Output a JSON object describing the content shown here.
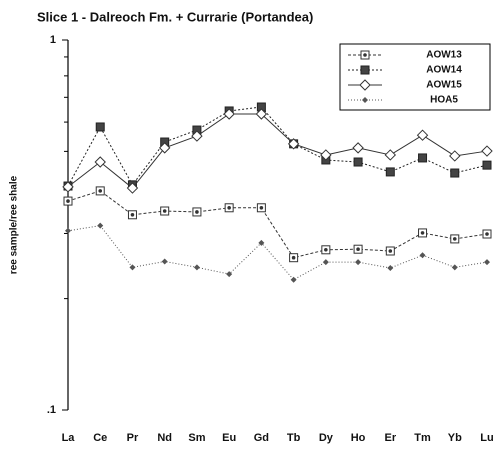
{
  "chart_data": {
    "type": "line",
    "title": "Slice 1 - Dalreoch Fm. + Currarie (Portandea)",
    "y_label": "ree sample/ree shale",
    "categories": [
      "La",
      "Ce",
      "Pr",
      "Nd",
      "Sm",
      "Eu",
      "Gd",
      "Tb",
      "Dy",
      "Ho",
      "Er",
      "Tm",
      "Yb",
      "Lu"
    ],
    "y_scale": "log",
    "ylim": [
      0.1,
      1
    ],
    "yticks": [
      {
        "value": 0.1,
        "label": ".1"
      },
      1
    ],
    "minor_yticks": [
      0.2,
      0.3,
      0.4,
      0.5,
      0.6,
      0.7,
      0.8,
      0.9
    ],
    "legend": "upper right",
    "series": [
      {
        "name": "AOW13",
        "color": "#333333",
        "marker": "square-dot",
        "dash": "3,2",
        "values": [
          0.367,
          0.391,
          0.337,
          0.345,
          0.343,
          0.352,
          0.352,
          0.258,
          0.271,
          0.272,
          0.269,
          0.301,
          0.29,
          0.299
        ]
      },
      {
        "name": "AOW14",
        "color": "#222222",
        "marker": "filled-square",
        "dash": "2,2",
        "values": [
          0.403,
          0.582,
          0.406,
          0.53,
          0.571,
          0.643,
          0.659,
          0.524,
          0.474,
          0.468,
          0.44,
          0.48,
          0.437,
          0.459
        ]
      },
      {
        "name": "AOW15",
        "color": "#333333",
        "marker": "open-diamond",
        "dash": "none",
        "values": [
          0.401,
          0.468,
          0.398,
          0.511,
          0.55,
          0.631,
          0.631,
          0.524,
          0.489,
          0.511,
          0.489,
          0.553,
          0.486,
          0.501
        ]
      },
      {
        "name": "HOA5",
        "color": "#555555",
        "marker": "small-diamond",
        "dash": "1,2",
        "values": [
          0.305,
          0.315,
          0.243,
          0.252,
          0.243,
          0.233,
          0.283,
          0.225,
          0.251,
          0.251,
          0.242,
          0.262,
          0.243,
          0.251
        ]
      }
    ]
  }
}
